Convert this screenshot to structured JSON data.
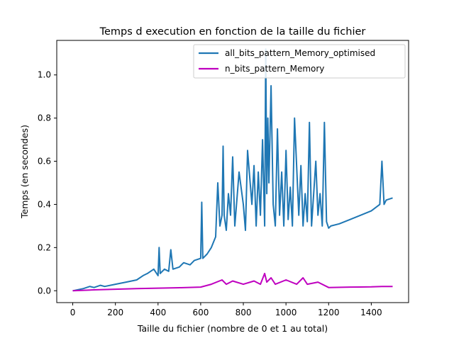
{
  "chart_data": {
    "type": "line",
    "title": "Temps d execution en fonction de la taille du fichier",
    "xlabel": "Taille du fichier (nombre de 0 et 1 au total)",
    "ylabel": "Temps (en secondes)",
    "xlim": [
      -75,
      1575
    ],
    "ylim": [
      -0.055,
      1.16
    ],
    "xticks": [
      0,
      200,
      400,
      600,
      800,
      1000,
      1200,
      1400
    ],
    "yticks": [
      0.0,
      0.2,
      0.4,
      0.6,
      0.8,
      1.0
    ],
    "xtick_labels": [
      "0",
      "200",
      "400",
      "600",
      "800",
      "1000",
      "1200",
      "1400"
    ],
    "ytick_labels": [
      "0.0",
      "0.2",
      "0.4",
      "0.6",
      "0.8",
      "1.0"
    ],
    "legend_position": "top-right",
    "grid": false,
    "series": [
      {
        "name": "all_bits_pattern_Memory_optimised",
        "color": "#1f77b4",
        "x": [
          0,
          50,
          80,
          100,
          130,
          150,
          200,
          250,
          300,
          330,
          350,
          380,
          400,
          405,
          410,
          430,
          450,
          460,
          470,
          500,
          520,
          550,
          570,
          600,
          605,
          610,
          630,
          650,
          670,
          680,
          690,
          700,
          705,
          710,
          720,
          730,
          740,
          750,
          760,
          780,
          800,
          810,
          820,
          840,
          850,
          860,
          870,
          880,
          890,
          900,
          905,
          910,
          915,
          920,
          930,
          940,
          950,
          960,
          970,
          980,
          990,
          1000,
          1010,
          1020,
          1030,
          1040,
          1060,
          1070,
          1080,
          1090,
          1100,
          1110,
          1120,
          1140,
          1150,
          1160,
          1170,
          1180,
          1190,
          1200,
          1210,
          1250,
          1300,
          1350,
          1400,
          1440,
          1450,
          1460,
          1470,
          1500
        ],
        "values": [
          0.0,
          0.01,
          0.02,
          0.015,
          0.025,
          0.02,
          0.03,
          0.04,
          0.05,
          0.07,
          0.08,
          0.1,
          0.07,
          0.2,
          0.08,
          0.1,
          0.09,
          0.19,
          0.1,
          0.11,
          0.13,
          0.12,
          0.14,
          0.15,
          0.41,
          0.15,
          0.17,
          0.2,
          0.25,
          0.5,
          0.3,
          0.35,
          0.67,
          0.35,
          0.28,
          0.45,
          0.35,
          0.62,
          0.3,
          0.55,
          0.4,
          0.28,
          0.65,
          0.4,
          0.58,
          0.3,
          0.55,
          0.35,
          0.7,
          0.3,
          1.12,
          0.45,
          0.8,
          0.5,
          0.95,
          0.4,
          0.3,
          0.75,
          0.35,
          0.55,
          0.3,
          0.65,
          0.33,
          0.48,
          0.3,
          0.8,
          0.35,
          0.58,
          0.3,
          0.45,
          0.32,
          0.78,
          0.3,
          0.6,
          0.35,
          0.45,
          0.3,
          0.78,
          0.32,
          0.29,
          0.3,
          0.31,
          0.33,
          0.35,
          0.37,
          0.4,
          0.6,
          0.4,
          0.42,
          0.43
        ]
      },
      {
        "name": "n_bits_pattern_Memory",
        "color": "#bf00bf",
        "x": [
          0,
          100,
          200,
          300,
          400,
          500,
          600,
          650,
          700,
          720,
          750,
          800,
          850,
          880,
          900,
          910,
          930,
          950,
          1000,
          1050,
          1080,
          1100,
          1150,
          1200,
          1300,
          1400,
          1450,
          1500
        ],
        "values": [
          0.0,
          0.004,
          0.007,
          0.01,
          0.012,
          0.014,
          0.017,
          0.03,
          0.05,
          0.03,
          0.045,
          0.03,
          0.045,
          0.03,
          0.08,
          0.04,
          0.06,
          0.03,
          0.05,
          0.03,
          0.06,
          0.03,
          0.04,
          0.015,
          0.017,
          0.018,
          0.02,
          0.02
        ]
      }
    ]
  }
}
